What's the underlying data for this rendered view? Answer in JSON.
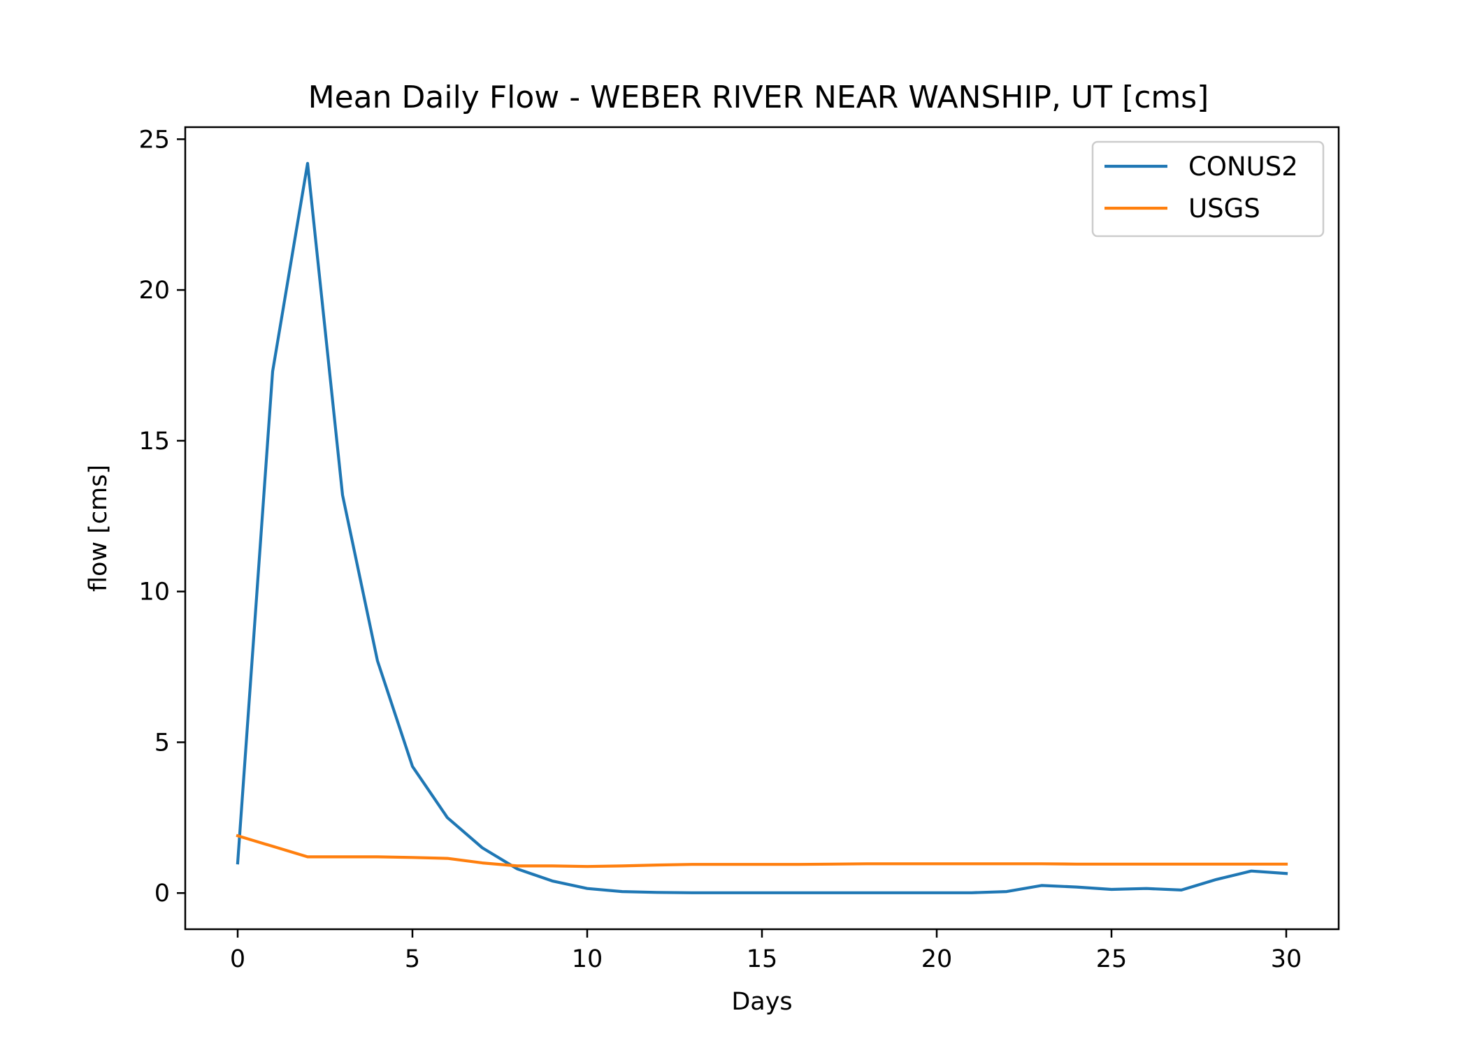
{
  "chart_data": {
    "type": "line",
    "title": "Mean Daily Flow - WEBER RIVER NEAR WANSHIP, UT [cms]",
    "xlabel": "Days",
    "ylabel": "flow [cms]",
    "xlim": [
      -1.5,
      31.5
    ],
    "ylim": [
      -1.2,
      25.4
    ],
    "xticks": [
      0,
      5,
      10,
      15,
      20,
      25,
      30
    ],
    "yticks": [
      0,
      5,
      10,
      15,
      20,
      25
    ],
    "grid": false,
    "legend_position": "top-right",
    "x": [
      0,
      1,
      2,
      3,
      4,
      5,
      6,
      7,
      8,
      9,
      10,
      11,
      12,
      13,
      14,
      15,
      16,
      17,
      18,
      19,
      20,
      21,
      22,
      23,
      24,
      25,
      26,
      27,
      28,
      29,
      30
    ],
    "series": [
      {
        "name": "CONUS2",
        "color": "#1f77b4",
        "values": [
          1.0,
          17.3,
          24.2,
          13.2,
          7.7,
          4.2,
          2.5,
          1.5,
          0.8,
          0.4,
          0.15,
          0.05,
          0.02,
          0.01,
          0.01,
          0.01,
          0.01,
          0.01,
          0.01,
          0.01,
          0.01,
          0.01,
          0.05,
          0.25,
          0.2,
          0.12,
          0.15,
          0.1,
          0.45,
          0.73,
          0.65
        ]
      },
      {
        "name": "USGS",
        "color": "#ff7f0e",
        "values": [
          1.9,
          1.55,
          1.2,
          1.2,
          1.2,
          1.18,
          1.15,
          1.0,
          0.9,
          0.9,
          0.88,
          0.9,
          0.93,
          0.95,
          0.95,
          0.95,
          0.95,
          0.96,
          0.97,
          0.97,
          0.97,
          0.97,
          0.97,
          0.97,
          0.96,
          0.96,
          0.96,
          0.96,
          0.96,
          0.96,
          0.96
        ]
      }
    ]
  }
}
